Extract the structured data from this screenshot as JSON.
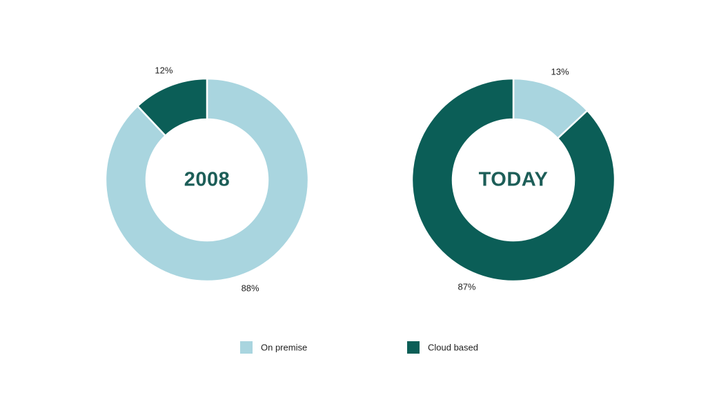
{
  "chart_data": [
    {
      "type": "donut",
      "title": "2008",
      "categories": [
        "On premise",
        "Cloud based"
      ],
      "values": [
        88,
        12
      ],
      "value_labels": [
        "88%",
        "12%"
      ],
      "colors": [
        "#a9d5df",
        "#0b5e57"
      ],
      "legend": "bottom"
    },
    {
      "type": "donut",
      "title": "TODAY",
      "categories": [
        "On premise",
        "Cloud based"
      ],
      "values": [
        13,
        87
      ],
      "value_labels": [
        "13%",
        "87%"
      ],
      "colors": [
        "#a9d5df",
        "#0b5e57"
      ],
      "legend": "bottom"
    }
  ]
}
